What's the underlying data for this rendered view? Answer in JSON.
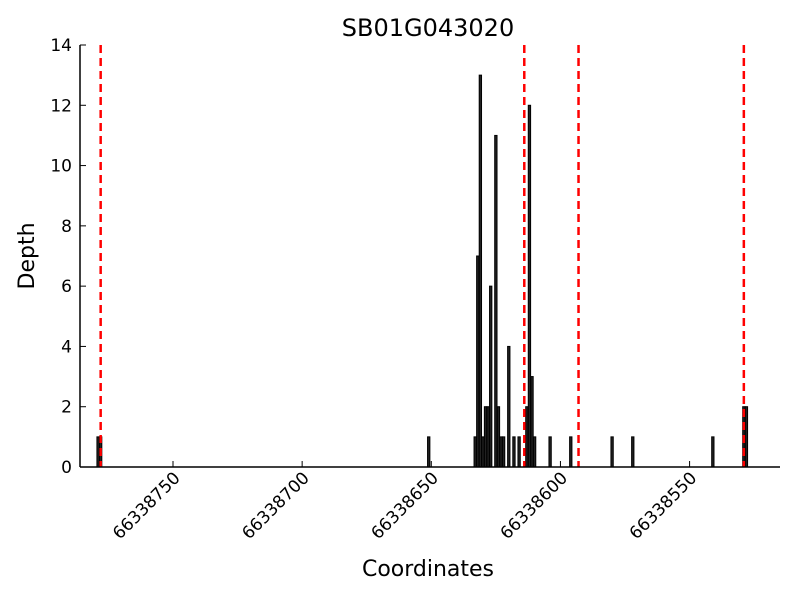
{
  "chart_data": {
    "type": "bar",
    "title": "SB01G043020",
    "xlabel": "Coordinates",
    "ylabel": "Depth",
    "xlim": [
      66338515,
      66338786
    ],
    "ylim": [
      0,
      14
    ],
    "x_reversed": true,
    "x_ticks": [
      66338750,
      66338700,
      66338650,
      66338600,
      66338550
    ],
    "y_ticks": [
      0,
      2,
      4,
      6,
      8,
      10,
      12,
      14
    ],
    "colors": {
      "bar": "#222222",
      "boundary": "#ff0000"
    },
    "boundary_lines": [
      66338778,
      66338614,
      66338593,
      66338529
    ],
    "bars": {
      "x": [
        66338779,
        66338778,
        66338651,
        66338633,
        66338632,
        66338631,
        66338630,
        66338629,
        66338628,
        66338627,
        66338625,
        66338624,
        66338623,
        66338622,
        66338620,
        66338618,
        66338616,
        66338613,
        66338612,
        66338611,
        66338610,
        66338604,
        66338596,
        66338580,
        66338572,
        66338541,
        66338529,
        66338528
      ],
      "values": [
        1,
        1,
        1,
        1,
        7,
        13,
        1,
        2,
        2,
        6,
        11,
        2,
        1,
        1,
        4,
        1,
        1,
        2,
        12,
        3,
        1,
        1,
        1,
        1,
        1,
        1,
        2,
        2
      ]
    }
  }
}
